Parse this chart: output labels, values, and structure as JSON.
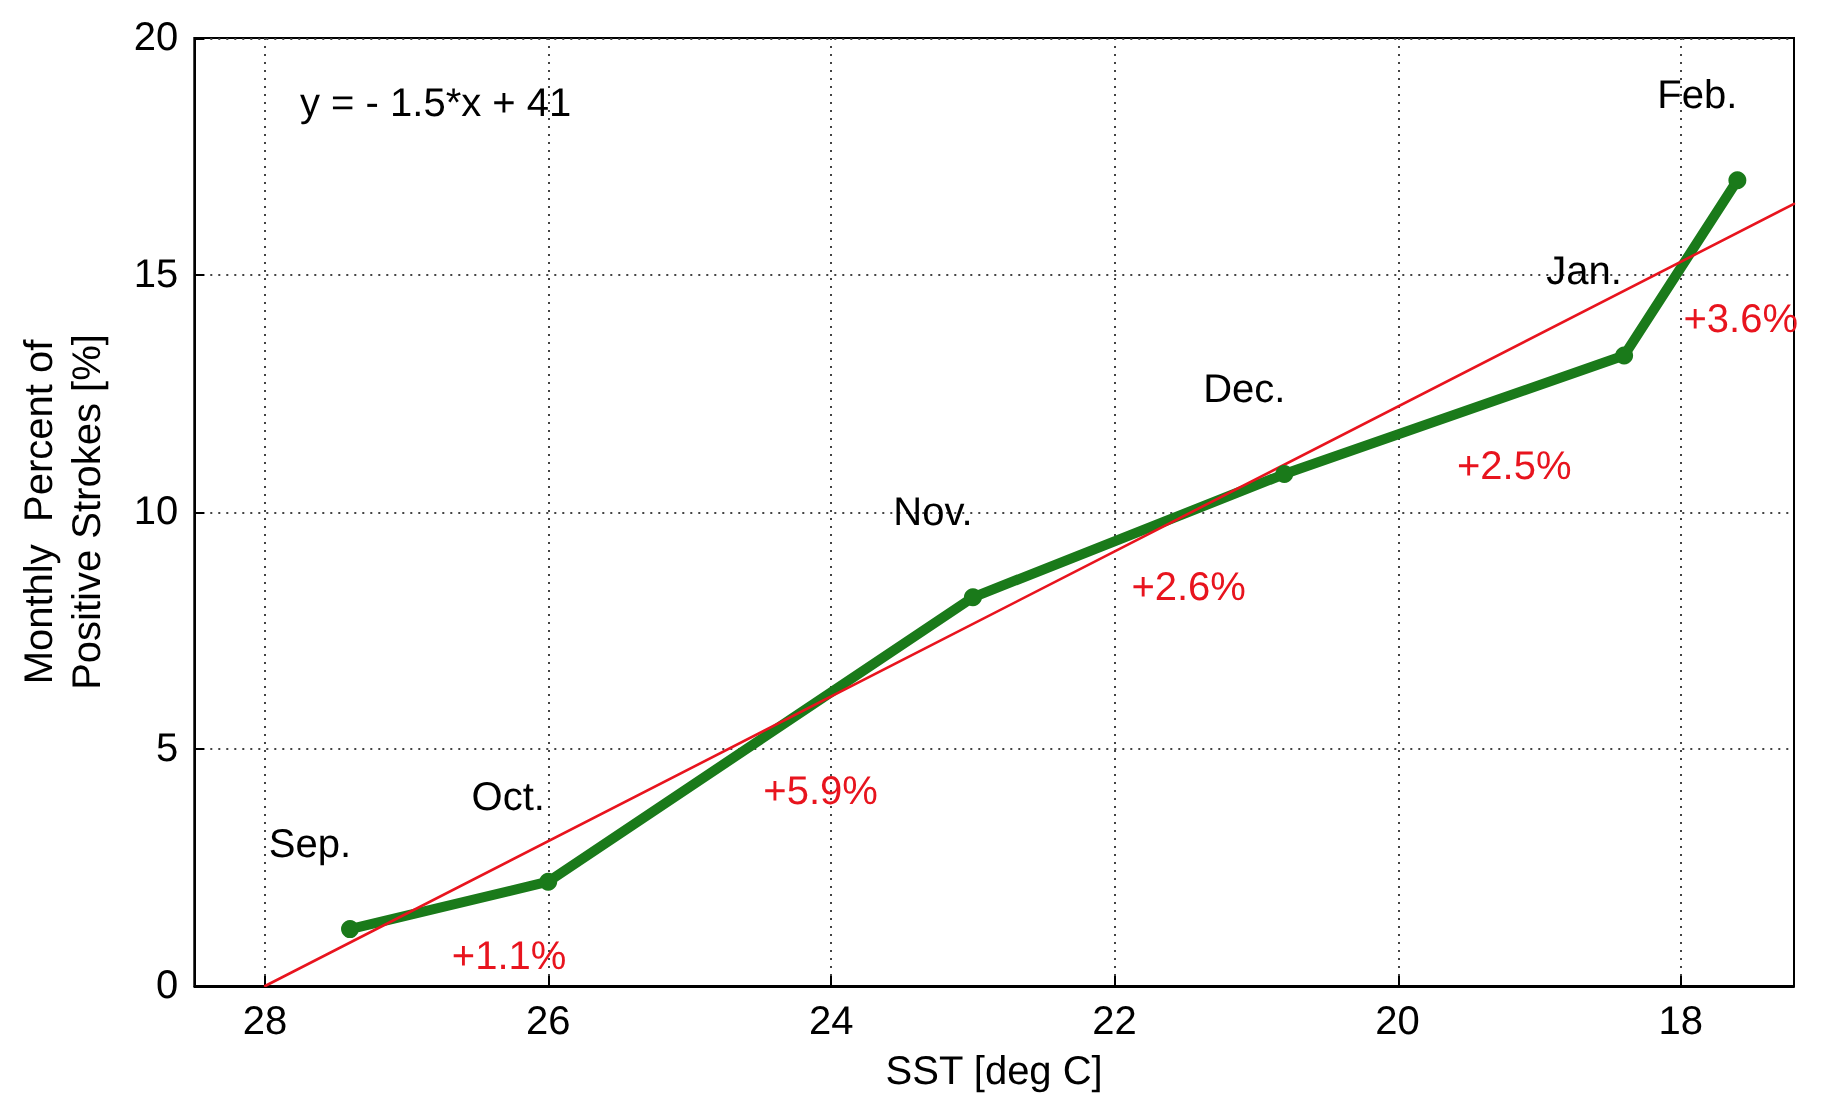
{
  "chart_data": {
    "type": "line",
    "xlabel": "SST [deg C]",
    "ylabel": "Monthly  Percent of\nPositive Strokes [%]",
    "xlim": [
      28.5,
      17.2
    ],
    "xticks": [
      28,
      26,
      24,
      22,
      20,
      18
    ],
    "ylim": [
      0,
      20
    ],
    "yticks": [
      0,
      5,
      10,
      15,
      20
    ],
    "grid": true,
    "series": [
      {
        "color": "#1a7a1a",
        "marker": "circle",
        "x": [
          27.4,
          26.0,
          23.0,
          20.8,
          18.4,
          17.6
        ],
        "values": [
          1.2,
          2.2,
          8.2,
          10.8,
          13.3,
          17.0
        ]
      },
      {
        "color": "#e8141e",
        "marker": "none",
        "x": [
          28.0,
          17.2
        ],
        "values": [
          0,
          16.5
        ]
      }
    ],
    "annotations": [
      "y = - 1.5*x + 41",
      "Sep.",
      "Oct.",
      "Nov.",
      "Dec.",
      "Jan.",
      "Feb.",
      "+1.1%",
      "+5.9%",
      "+2.6%",
      "+2.5%",
      "+3.6%"
    ]
  }
}
